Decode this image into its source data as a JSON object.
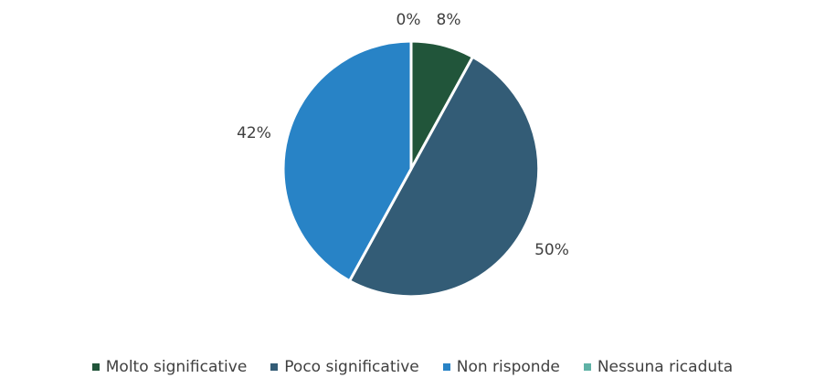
{
  "chart_data": {
    "type": "pie",
    "categories": [
      "Molto significative",
      "Poco significative",
      "Non risponde",
      "Nessuna ricaduta"
    ],
    "values": [
      8,
      50,
      42,
      0
    ],
    "labels": [
      "8%",
      "50%",
      "42%",
      "0%"
    ],
    "colors": [
      "#21553a",
      "#335c76",
      "#2883c6",
      "#5fb2a6"
    ],
    "legend_position": "bottom",
    "title": ""
  }
}
